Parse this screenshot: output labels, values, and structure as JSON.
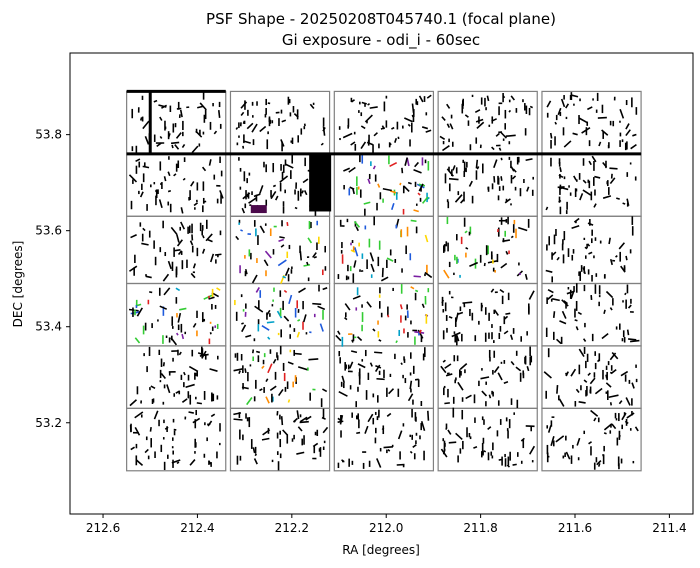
{
  "chart_data": {
    "type": "scatter",
    "title": "PSF Shape - 20250208T045740.1 (focal plane)",
    "subtitle": "Gi exposure - odi_i - 60sec",
    "xlabel": "RA [degrees]",
    "ylabel": "DEC [degrees]",
    "xlim": [
      212.67,
      211.35
    ],
    "ylim": [
      53.01,
      53.97
    ],
    "x_inverted": true,
    "xticks": [
      212.6,
      212.4,
      212.2,
      212.0,
      211.8,
      211.6,
      211.4
    ],
    "xtick_labels": [
      "212.6",
      "212.4",
      "212.2",
      "212.0",
      "211.8",
      "211.6",
      "211.4"
    ],
    "yticks": [
      53.2,
      53.4,
      53.6,
      53.8
    ],
    "ytick_labels": [
      "53.2",
      "53.4",
      "53.6",
      "53.8"
    ],
    "grid": false,
    "ccd_grid": {
      "rows_dec_top": [
        53.89,
        53.76,
        53.63,
        53.49,
        53.36,
        53.23
      ],
      "rows_dec_bottom": [
        53.76,
        53.63,
        53.49,
        53.36,
        53.23,
        53.1
      ],
      "cols_ra_left": [
        212.55,
        212.33,
        212.11,
        211.89,
        211.67
      ],
      "cols_ra_right": [
        212.34,
        212.12,
        211.9,
        211.68,
        211.46
      ]
    },
    "missing_ccds": [],
    "special_regions": [
      {
        "ra": 212.14,
        "dec_top": 53.76,
        "dec_bottom": 53.64,
        "color": "#000000"
      },
      {
        "ra": 212.27,
        "dec": 53.645,
        "color": "#4b0a4b"
      }
    ],
    "colors": {
      "default": "#000000",
      "green": "#33cc33",
      "yellow": "#ffd700",
      "red": "#e02020",
      "blue": "#1e5adc",
      "purple": "#7a1fa2",
      "cyan": "#00a0c8",
      "orange": "#ff8c00"
    }
  }
}
